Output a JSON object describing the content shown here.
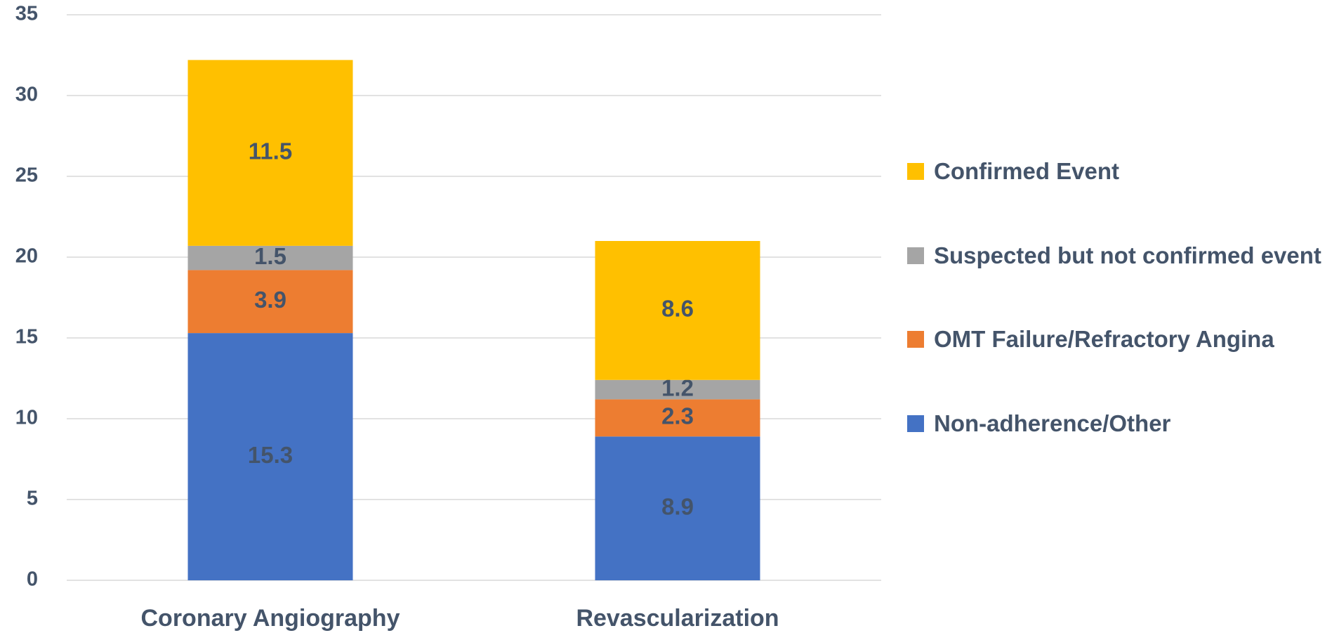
{
  "chart_data": {
    "type": "bar",
    "stacked": true,
    "categories": [
      "Coronary Angiography",
      "Revascularization"
    ],
    "series": [
      {
        "name": "Non-adherence/Other",
        "color": "#4472c4",
        "values": [
          15.3,
          8.9
        ]
      },
      {
        "name": "OMT Failure/Refractory Angina",
        "color": "#ed7d31",
        "values": [
          3.9,
          2.3
        ]
      },
      {
        "name": "Suspected but not confirmed event",
        "color": "#a5a5a5",
        "values": [
          1.5,
          1.2
        ]
      },
      {
        "name": "Confirmed Event",
        "color": "#ffc000",
        "values": [
          11.5,
          8.6
        ]
      }
    ],
    "ylim": [
      0,
      35
    ],
    "yticks": [
      0,
      5,
      10,
      15,
      20,
      25,
      30,
      35
    ],
    "grid": true,
    "legend": "right"
  }
}
